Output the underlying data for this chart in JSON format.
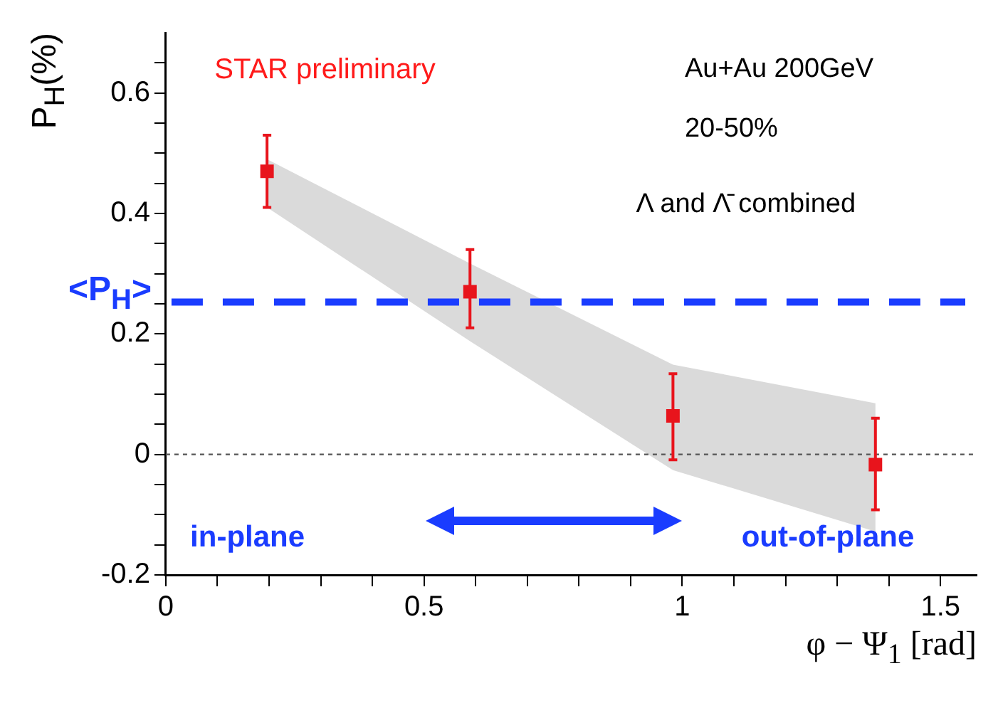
{
  "chart_data": {
    "type": "scatter",
    "xlabel": "φ − Ψ$_{1}$ [rad]",
    "ylabel": "P$_{H}$(%)",
    "annotations": [
      "STAR preliminary",
      "Au+Au 200GeV",
      "20-50%",
      "Λ and Λ̄ combined",
      "in-plane",
      "out-of-plane"
    ],
    "series": [
      {
        "color": "#e8141c",
        "x": [
          0.196,
          0.589,
          0.982,
          1.374
        ],
        "values": [
          0.47,
          0.27,
          0.064,
          -0.017
        ],
        "errors": [
          [
            0.41,
            0.53
          ],
          [
            0.21,
            0.34
          ],
          [
            -0.009,
            0.134
          ],
          [
            -0.092,
            0.06
          ]
        ],
        "lower": [
          0.41,
          0.188,
          -0.026,
          -0.128
        ],
        "upper": [
          0.49,
          0.317,
          0.149,
          0.085
        ]
      }
    ],
    "marker": "square",
    "grid": false,
    "legend": false,
    "xlim": [
      0,
      1.57
    ],
    "ylim": [
      -0.2,
      0.7
    ],
    "xticks": [
      0,
      {
        "value": 0.1,
        "label": null
      },
      {
        "value": 0.2,
        "label": null
      },
      {
        "value": 0.3,
        "label": null
      },
      {
        "value": 0.4,
        "label": null
      },
      0.5,
      {
        "value": 0.6,
        "label": null
      },
      {
        "value": 0.7,
        "label": null
      },
      {
        "value": 0.8,
        "label": null
      },
      {
        "value": 0.9,
        "label": null
      },
      1,
      {
        "value": 1.1,
        "label": null
      },
      {
        "value": 1.2,
        "label": null
      },
      {
        "value": 1.3,
        "label": null
      },
      {
        "value": 1.4,
        "label": null
      },
      1.5
    ],
    "yticks": [
      -0.2,
      {
        "value": -0.15,
        "label": null
      },
      {
        "value": -0.1,
        "label": null
      },
      {
        "value": -0.05,
        "label": null
      },
      0,
      {
        "value": 0.05,
        "label": null
      },
      {
        "value": 0.1,
        "label": null
      },
      {
        "value": 0.15,
        "label": null
      },
      0.2,
      {
        "value": 0.25,
        "label": null
      },
      {
        "value": 0.3,
        "label": null
      },
      {
        "value": 0.35,
        "label": null
      },
      0.4,
      {
        "value": 0.45,
        "label": null
      },
      {
        "value": 0.5,
        "label": null
      },
      {
        "value": 0.55,
        "label": null
      },
      0.6,
      {
        "value": 0.65,
        "label": null
      }
    ],
    "ref_lines": [
      {
        "axis": "y",
        "value": 0,
        "color": "#555555",
        "line_style": "dotted"
      },
      {
        "axis": "y",
        "value": 0.253,
        "label": "<P$_{H}$>",
        "color": "#1a3cff",
        "line_style": "dashed"
      }
    ]
  }
}
